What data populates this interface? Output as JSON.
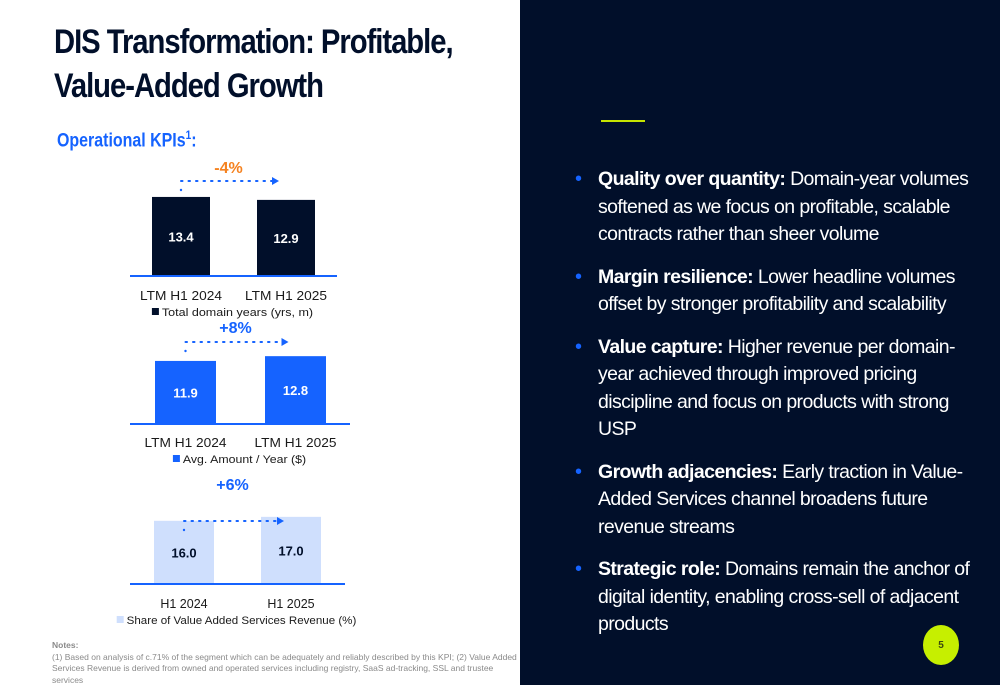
{
  "title": "DIS Transformation:  Profitable, Value-Added Growth",
  "title_lines": [
    "DIS Transformation:  Profitable,",
    "Value-Added Growth"
  ],
  "subtitle": "Operational KPIs",
  "subtitle_sup": "1",
  "subtitle_suffix": ":",
  "colors": {
    "navy": "#010f2a",
    "blue": "#1563ff",
    "light_blue": "#cfdffd",
    "orange": "#f58220",
    "lime": "#c6ef00"
  },
  "chart_data": [
    {
      "type": "bar",
      "categories": [
        "LTM H1 2024",
        "LTM H1 2025"
      ],
      "values": [
        13.4,
        12.9
      ],
      "data_labels": [
        "13.4",
        "12.9"
      ],
      "legend": "Total domain years (yrs, m)",
      "change_label": "-4%",
      "change_color": "#f58220",
      "bar_color": "#010f2a",
      "label_color": "#ffffff",
      "legend_placement": "bottom"
    },
    {
      "type": "bar",
      "categories": [
        "LTM H1 2024",
        "LTM H1 2025"
      ],
      "values": [
        11.9,
        12.8
      ],
      "data_labels": [
        "11.9",
        "12.8"
      ],
      "legend": "Avg. Amount / Year ($)",
      "change_label": "+8%",
      "change_color": "#1563ff",
      "bar_color": "#1563ff",
      "label_color": "#ffffff",
      "legend_placement": "bottom"
    },
    {
      "type": "bar",
      "categories": [
        "H1 2024",
        "H1 2025"
      ],
      "values": [
        16.0,
        17.0
      ],
      "data_labels": [
        "16.0",
        "17.0"
      ],
      "legend": "Share of Value Added Services Revenue (%)",
      "change_label": "+6%",
      "change_color": "#1563ff",
      "bar_color": "#cfdffd",
      "label_color": "#010f2a",
      "legend_placement": "bottom"
    }
  ],
  "notes": {
    "heading": "Notes:",
    "text": " (1) Based on analysis of c.71% of the segment which can be adequately and reliably described by this KPI; (2) Value Added Services Revenue is derived from owned and operated services including registry, SaaS ad-tracking, SSL and trustee services"
  },
  "bullets": [
    {
      "bold": "Quality over quantity:",
      "text": " Domain-year volumes softened as we focus on profitable, scalable contracts rather than sheer volume"
    },
    {
      "bold": "Margin resilience:",
      "text": " Lower headline volumes offset by stronger profitability and scalability"
    },
    {
      "bold": "Value capture:",
      "text": " Higher revenue per domain-year achieved through improved pricing discipline and focus on products with strong USP"
    },
    {
      "bold": "Growth adjacencies:",
      "text": " Early traction in Value-Added Services channel broadens future revenue streams"
    },
    {
      "bold": "Strategic role:",
      "text": " Domains remain the anchor of digital identity, enabling cross-sell of adjacent products"
    }
  ],
  "page_number": "5"
}
